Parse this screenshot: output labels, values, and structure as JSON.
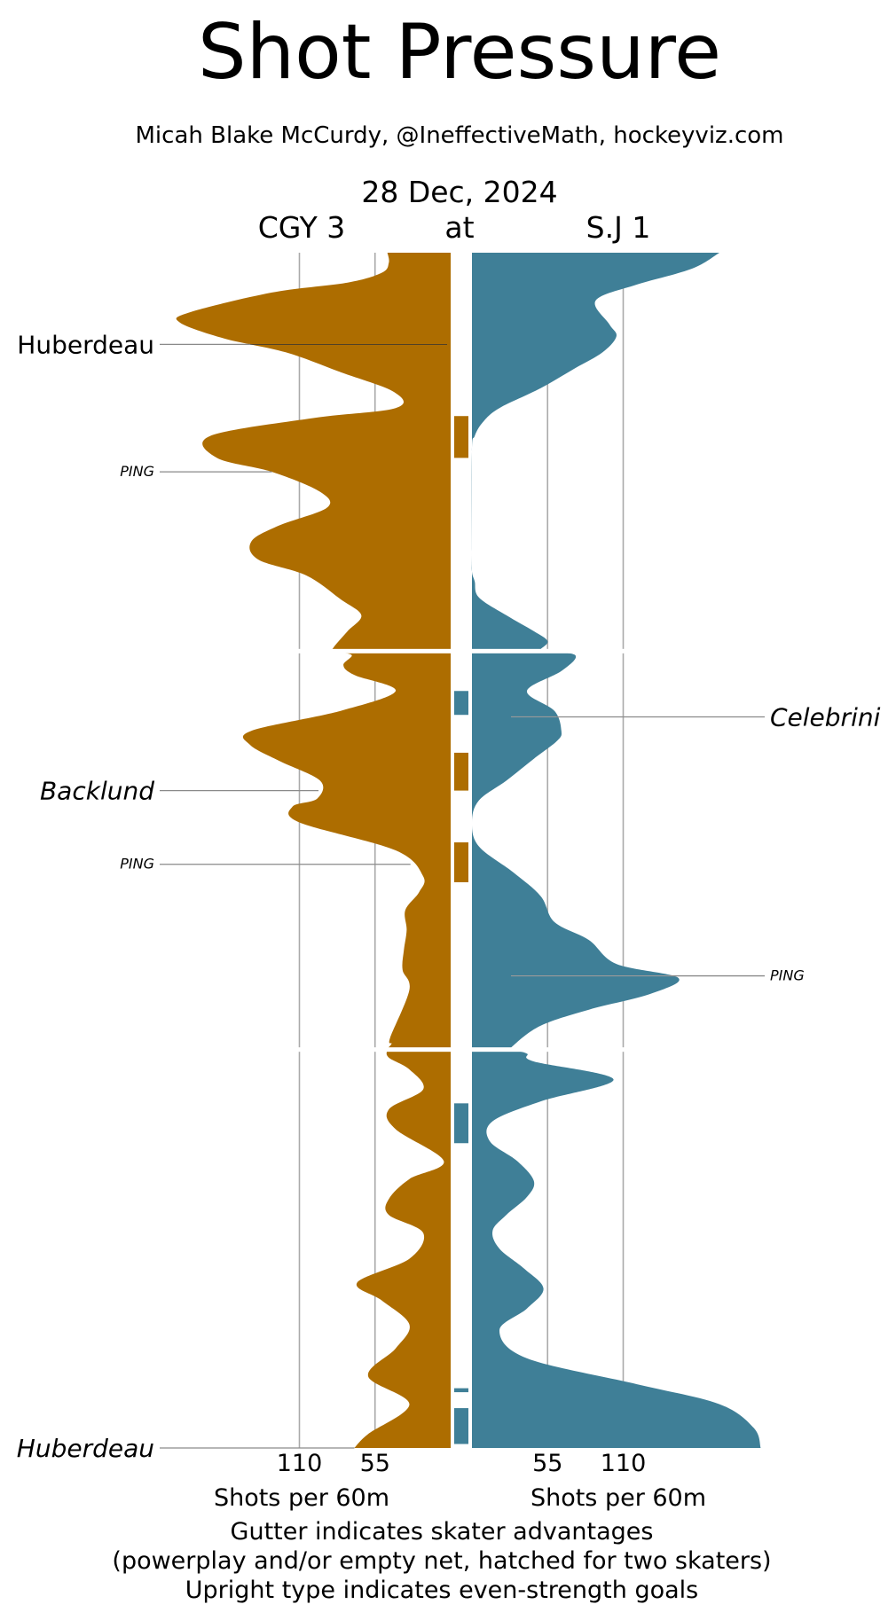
{
  "chart_data": {
    "type": "area",
    "title": "Shot Pressure",
    "subtitle": "Micah Blake McCurdy, @IneffectiveMath, hockeyviz.com",
    "date": "28 Dec, 2024",
    "teams": {
      "away": {
        "label": "CGY 3",
        "color": "#ad6d00"
      },
      "at": "at",
      "home": {
        "label": "S.J 1",
        "color": "#3f7f97"
      }
    },
    "xlabel": "Shots per 60m",
    "tick_values": [
      55,
      110
    ],
    "x_max": 220,
    "game_minutes": 60,
    "periods": 3,
    "series": [
      {
        "team": "away",
        "side": "left",
        "points": [
          [
            0,
            46
          ],
          [
            0.5,
            45
          ],
          [
            1.0,
            50
          ],
          [
            1.5,
            75
          ],
          [
            2.0,
            130
          ],
          [
            3.0,
            190
          ],
          [
            3.5,
            197
          ],
          [
            4.3,
            165
          ],
          [
            5.0,
            120
          ],
          [
            6.0,
            80
          ],
          [
            7.0,
            41
          ],
          [
            7.8,
            40
          ],
          [
            8.3,
            100
          ],
          [
            9.2,
            175
          ],
          [
            10.3,
            170
          ],
          [
            11.0,
            130
          ],
          [
            12.0,
            95
          ],
          [
            12.8,
            90
          ],
          [
            13.7,
            125
          ],
          [
            14.5,
            145
          ],
          [
            15.4,
            140
          ],
          [
            16.2,
            105
          ],
          [
            17.4,
            80
          ],
          [
            18.2,
            65
          ],
          [
            19.0,
            75
          ],
          [
            19.8,
            85
          ],
          [
            20.0,
            85
          ],
          [
            20.2,
            72
          ],
          [
            20.7,
            78
          ],
          [
            21.2,
            70
          ],
          [
            22.0,
            40
          ],
          [
            23.0,
            80
          ],
          [
            24.0,
            145
          ],
          [
            24.7,
            146
          ],
          [
            25.5,
            125
          ],
          [
            26.5,
            95
          ],
          [
            27.4,
            97
          ],
          [
            27.8,
            115
          ],
          [
            28.6,
            110
          ],
          [
            30.0,
            40
          ],
          [
            31.3,
            20
          ],
          [
            32.1,
            23
          ],
          [
            33.0,
            33
          ],
          [
            34.0,
            32
          ],
          [
            35.0,
            34
          ],
          [
            36.0,
            35
          ],
          [
            37.0,
            30
          ],
          [
            39.4,
            44
          ],
          [
            39.7,
            43
          ],
          [
            40.0,
            46
          ],
          [
            40.4,
            45
          ],
          [
            41.0,
            30
          ],
          [
            42.0,
            20
          ],
          [
            43.0,
            45
          ],
          [
            44.0,
            40
          ],
          [
            45.6,
            5
          ],
          [
            46.5,
            30
          ],
          [
            47.5,
            45
          ],
          [
            48.3,
            45
          ],
          [
            49.2,
            20
          ],
          [
            50.5,
            30
          ],
          [
            51.7,
            68
          ],
          [
            52.6,
            50
          ],
          [
            53.8,
            30
          ],
          [
            55.0,
            40
          ],
          [
            56.4,
            60
          ],
          [
            57.8,
            30
          ],
          [
            59.3,
            60
          ],
          [
            60.0,
            70
          ]
        ]
      },
      {
        "team": "home",
        "side": "right",
        "points": [
          [
            0,
            180
          ],
          [
            0.8,
            160
          ],
          [
            1.6,
            120
          ],
          [
            2.4,
            90
          ],
          [
            3.6,
            100
          ],
          [
            4.2,
            105
          ],
          [
            5.0,
            95
          ],
          [
            5.8,
            75
          ],
          [
            6.8,
            50
          ],
          [
            7.8,
            20
          ],
          [
            8.5,
            8
          ],
          [
            9.2,
            2
          ],
          [
            10.0,
            0
          ],
          [
            15.0,
            0
          ],
          [
            16.0,
            0
          ],
          [
            16.5,
            2
          ],
          [
            17.3,
            5
          ],
          [
            18.2,
            25
          ],
          [
            19.0,
            45
          ],
          [
            19.5,
            55
          ],
          [
            19.9,
            50
          ],
          [
            20.0,
            50
          ],
          [
            20.2,
            75
          ],
          [
            21.0,
            65
          ],
          [
            22.0,
            40
          ],
          [
            23.0,
            60
          ],
          [
            24.0,
            65
          ],
          [
            24.5,
            62
          ],
          [
            25.4,
            45
          ],
          [
            26.5,
            25
          ],
          [
            27.5,
            5
          ],
          [
            28.6,
            0
          ],
          [
            29.8,
            5
          ],
          [
            31.1,
            30
          ],
          [
            32.3,
            50
          ],
          [
            33.6,
            60
          ],
          [
            34.5,
            85
          ],
          [
            35.7,
            105
          ],
          [
            36.4,
            150
          ],
          [
            37.2,
            130
          ],
          [
            38.0,
            85
          ],
          [
            38.8,
            50
          ],
          [
            39.8,
            30
          ],
          [
            40.0,
            30
          ],
          [
            40.2,
            40
          ],
          [
            40.6,
            45
          ],
          [
            41.5,
            103
          ],
          [
            42.6,
            50
          ],
          [
            43.6,
            15
          ],
          [
            44.6,
            13
          ],
          [
            45.6,
            33
          ],
          [
            46.6,
            45
          ],
          [
            47.4,
            40
          ],
          [
            48.3,
            25
          ],
          [
            49.1,
            15
          ],
          [
            50.0,
            20
          ],
          [
            51.0,
            38
          ],
          [
            52.0,
            52
          ],
          [
            53.0,
            40
          ],
          [
            54.1,
            20
          ],
          [
            55.5,
            40
          ],
          [
            56.8,
            120
          ],
          [
            57.8,
            180
          ],
          [
            59.0,
            205
          ],
          [
            60.0,
            210
          ]
        ]
      }
    ],
    "gutter_advantages": [
      {
        "team": "away",
        "start": 8.2,
        "end": 10.3,
        "hatched": false
      },
      {
        "team": "home",
        "start": 22.0,
        "end": 23.2,
        "hatched": false
      },
      {
        "team": "away",
        "start": 25.1,
        "end": 27.0,
        "hatched": false
      },
      {
        "team": "away",
        "start": 29.6,
        "end": 31.6,
        "hatched": false
      },
      {
        "team": "home",
        "start": 42.7,
        "end": 44.7,
        "hatched": false
      },
      {
        "team": "home",
        "start": 57.0,
        "end": 57.2,
        "hatched": false
      },
      {
        "team": "home",
        "start": 58.0,
        "end": 59.8,
        "hatched": false
      }
    ],
    "annotations": [
      {
        "label": "Huberdeau",
        "side": "left",
        "minute": 4.6,
        "style": "upright",
        "size": "large"
      },
      {
        "label": "PING",
        "side": "left",
        "minute": 11.0,
        "style": "italic",
        "size": "small"
      },
      {
        "label": "Celebrini",
        "side": "right",
        "minute": 23.3,
        "style": "italic",
        "size": "large"
      },
      {
        "label": "Backlund",
        "side": "left",
        "minute": 27.0,
        "style": "italic",
        "size": "large"
      },
      {
        "label": "PING",
        "side": "left",
        "minute": 30.7,
        "style": "italic",
        "size": "small"
      },
      {
        "label": "PING",
        "side": "right",
        "minute": 36.3,
        "style": "italic",
        "size": "small"
      },
      {
        "label": "Huberdeau",
        "side": "left",
        "minute": 60.0,
        "style": "italic",
        "size": "large"
      }
    ],
    "notes": [
      "Gutter indicates skater advantages",
      "(powerplay and/or empty net, hatched for two skaters)",
      "Upright type indicates even-strength goals"
    ]
  }
}
